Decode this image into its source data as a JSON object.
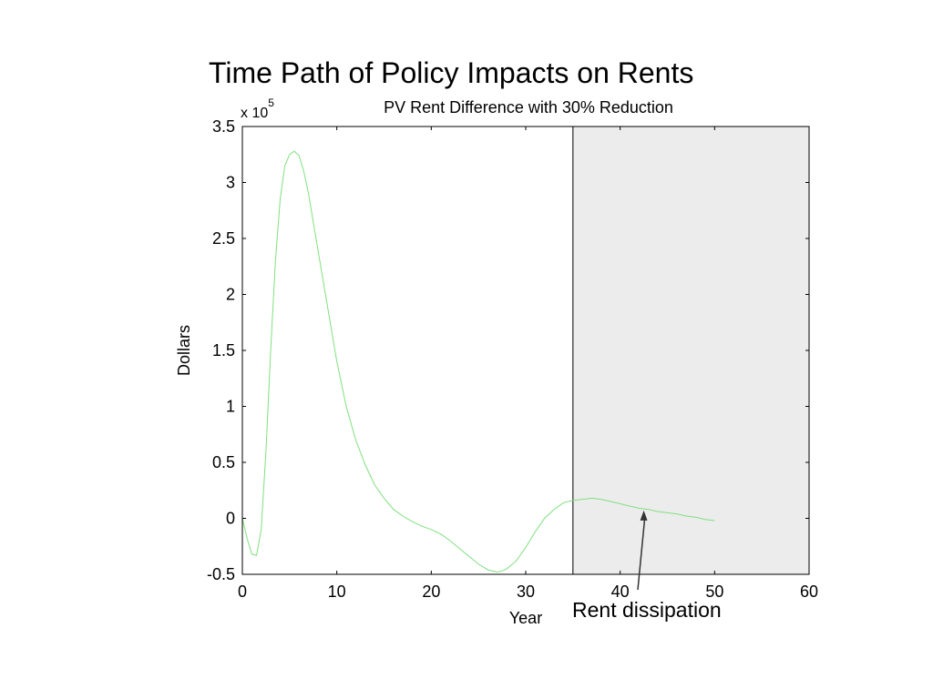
{
  "slide": {
    "title": "Time Path of Policy Impacts on Rents",
    "annotation": "Rent dissipation"
  },
  "colors": {
    "line": "#7fe07f",
    "shade": "#ececec",
    "axis": "#000000",
    "arrow": "#333333"
  },
  "chart_data": {
    "type": "line",
    "title": "PV Rent Difference with 30% Reduction",
    "xlabel": "Year",
    "ylabel": "Dollars",
    "y_multiplier": {
      "base": "x 10",
      "exponent": "5"
    },
    "xlim": [
      0,
      60
    ],
    "ylim": [
      -0.5,
      3.5
    ],
    "xticks": [
      0,
      10,
      20,
      30,
      40,
      50,
      60
    ],
    "yticks": [
      -0.5,
      0,
      0.5,
      1,
      1.5,
      2,
      2.5,
      3,
      3.5
    ],
    "xtick_labels": [
      "0",
      "10",
      "20",
      "30",
      "40",
      "50",
      "60"
    ],
    "ytick_labels": [
      "-0.5",
      "0",
      "0.5",
      "1",
      "1.5",
      "2",
      "2.5",
      "3",
      "3.5"
    ],
    "shaded_region": {
      "x_start": 35,
      "x_end": 60
    },
    "annotation_arrow_target": {
      "x": 42.5,
      "y": 0.07
    },
    "grid": false,
    "series": [
      {
        "x": [
          0,
          0.5,
          1,
          1.5,
          2,
          2.5,
          3,
          3.5,
          4,
          4.5,
          5,
          5.5,
          6,
          6.5,
          7,
          8,
          9,
          10,
          11,
          12,
          13,
          14,
          15,
          16,
          17,
          18,
          19,
          20,
          21,
          22,
          23,
          24,
          25,
          26,
          27,
          27.5,
          28,
          29,
          30,
          31,
          32,
          33,
          34,
          35,
          36,
          37,
          38,
          39,
          40,
          41,
          42,
          43,
          44,
          45,
          46,
          47,
          48,
          49,
          50
        ],
        "values": [
          0,
          -0.18,
          -0.32,
          -0.33,
          -0.1,
          0.6,
          1.5,
          2.3,
          2.85,
          3.15,
          3.25,
          3.28,
          3.24,
          3.1,
          2.9,
          2.4,
          1.9,
          1.4,
          1.0,
          0.7,
          0.48,
          0.3,
          0.18,
          0.08,
          0.02,
          -0.03,
          -0.07,
          -0.1,
          -0.14,
          -0.2,
          -0.27,
          -0.34,
          -0.41,
          -0.46,
          -0.48,
          -0.47,
          -0.45,
          -0.38,
          -0.26,
          -0.12,
          0.0,
          0.08,
          0.14,
          0.16,
          0.17,
          0.18,
          0.17,
          0.15,
          0.13,
          0.11,
          0.09,
          0.08,
          0.06,
          0.05,
          0.04,
          0.02,
          0.01,
          -0.01,
          -0.02
        ]
      }
    ]
  }
}
